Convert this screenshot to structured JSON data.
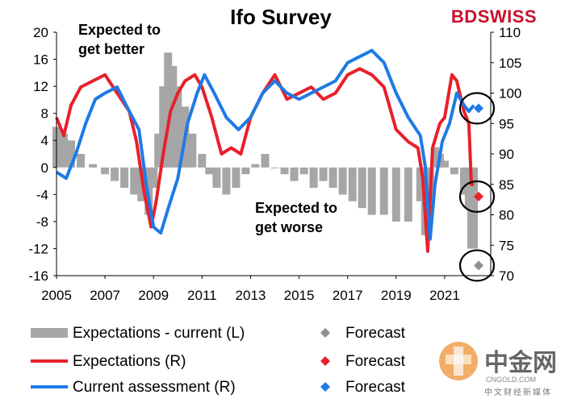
{
  "chart_data": {
    "type": "bar+line",
    "title": "Ifo Survey",
    "x_ticks": [
      "2005",
      "2007",
      "2009",
      "2011",
      "2013",
      "2015",
      "2017",
      "2019",
      "2021"
    ],
    "xlim": [
      2005,
      2022.9
    ],
    "ylim_left": [
      -16,
      20
    ],
    "ylim_right": [
      70,
      110
    ],
    "left_ticks": [
      "20",
      "16",
      "12",
      "8",
      "4",
      "0",
      "-4",
      "-8",
      "-12",
      "-16"
    ],
    "right_ticks": [
      "110",
      "105",
      "100",
      "95",
      "90",
      "85",
      "80",
      "75",
      "70"
    ],
    "annotations": [
      {
        "id": "better",
        "lines": [
          "Expected to",
          "get better"
        ]
      },
      {
        "id": "worse",
        "lines": [
          "Expected to",
          "get worse"
        ]
      }
    ],
    "series": [
      {
        "name": "Expectations - current (L)",
        "type": "bar",
        "axis": "left",
        "color": "#a6a6a6",
        "points": [
          [
            2005.0,
            6
          ],
          [
            2005.3,
            5
          ],
          [
            2005.6,
            4
          ],
          [
            2006.0,
            2
          ],
          [
            2006.5,
            0.5
          ],
          [
            2007.0,
            -1
          ],
          [
            2007.4,
            -2
          ],
          [
            2007.8,
            -3
          ],
          [
            2008.2,
            -4
          ],
          [
            2008.5,
            -5
          ],
          [
            2008.8,
            -7
          ],
          [
            2009.0,
            -3
          ],
          [
            2009.2,
            5
          ],
          [
            2009.4,
            12
          ],
          [
            2009.6,
            17
          ],
          [
            2009.8,
            15
          ],
          [
            2010.0,
            12
          ],
          [
            2010.3,
            9
          ],
          [
            2010.6,
            5
          ],
          [
            2011.0,
            2
          ],
          [
            2011.3,
            -1
          ],
          [
            2011.6,
            -3
          ],
          [
            2012.0,
            -4
          ],
          [
            2012.4,
            -3
          ],
          [
            2012.8,
            -1
          ],
          [
            2013.2,
            0.5
          ],
          [
            2013.6,
            2
          ],
          [
            2014.0,
            0
          ],
          [
            2014.4,
            -1
          ],
          [
            2014.8,
            -2
          ],
          [
            2015.2,
            -1
          ],
          [
            2015.6,
            -3
          ],
          [
            2016.0,
            -2
          ],
          [
            2016.4,
            -3
          ],
          [
            2016.8,
            -4
          ],
          [
            2017.2,
            -5
          ],
          [
            2017.6,
            -6
          ],
          [
            2018.0,
            -7
          ],
          [
            2018.5,
            -7
          ],
          [
            2019.0,
            -8
          ],
          [
            2019.5,
            -8
          ],
          [
            2020.0,
            -5
          ],
          [
            2020.2,
            -10
          ],
          [
            2020.4,
            -5
          ],
          [
            2020.6,
            3
          ],
          [
            2020.8,
            2
          ],
          [
            2021.0,
            1
          ],
          [
            2021.4,
            -1
          ],
          [
            2021.8,
            -4
          ],
          [
            2022.0,
            -6
          ],
          [
            2022.1,
            -12
          ],
          [
            2022.2,
            -12
          ]
        ]
      },
      {
        "name": "Expectations (R)",
        "type": "line",
        "axis": "right",
        "color": "#e8202a",
        "points": [
          [
            2005.0,
            96
          ],
          [
            2005.3,
            93
          ],
          [
            2005.6,
            98
          ],
          [
            2006.0,
            101
          ],
          [
            2006.5,
            102
          ],
          [
            2007.0,
            103
          ],
          [
            2007.5,
            100
          ],
          [
            2008.0,
            97
          ],
          [
            2008.3,
            92
          ],
          [
            2008.6,
            84
          ],
          [
            2008.9,
            78
          ],
          [
            2009.1,
            82
          ],
          [
            2009.4,
            90
          ],
          [
            2009.7,
            97
          ],
          [
            2010.0,
            100
          ],
          [
            2010.3,
            102
          ],
          [
            2010.7,
            103
          ],
          [
            2011.0,
            101
          ],
          [
            2011.4,
            96
          ],
          [
            2011.8,
            90
          ],
          [
            2012.2,
            91
          ],
          [
            2012.6,
            90
          ],
          [
            2013.0,
            96
          ],
          [
            2013.5,
            100
          ],
          [
            2014.0,
            103
          ],
          [
            2014.5,
            99
          ],
          [
            2015.0,
            100
          ],
          [
            2015.5,
            101
          ],
          [
            2016.0,
            99
          ],
          [
            2016.5,
            100
          ],
          [
            2017.0,
            103
          ],
          [
            2017.5,
            104
          ],
          [
            2018.0,
            103
          ],
          [
            2018.5,
            101
          ],
          [
            2019.0,
            94
          ],
          [
            2019.5,
            92
          ],
          [
            2019.9,
            91
          ],
          [
            2020.1,
            86
          ],
          [
            2020.3,
            74
          ],
          [
            2020.5,
            91
          ],
          [
            2020.8,
            95
          ],
          [
            2021.0,
            96
          ],
          [
            2021.3,
            103
          ],
          [
            2021.5,
            102
          ],
          [
            2021.8,
            97
          ],
          [
            2022.0,
            95
          ],
          [
            2022.1,
            85
          ],
          [
            2022.2,
            85
          ]
        ]
      },
      {
        "name": "Current assessment (R)",
        "type": "line",
        "axis": "right",
        "color": "#1e7ae6",
        "points": [
          [
            2005.0,
            87
          ],
          [
            2005.4,
            86
          ],
          [
            2005.8,
            90
          ],
          [
            2006.2,
            95
          ],
          [
            2006.6,
            99
          ],
          [
            2007.0,
            100
          ],
          [
            2007.5,
            101
          ],
          [
            2008.0,
            97
          ],
          [
            2008.4,
            94
          ],
          [
            2008.7,
            85
          ],
          [
            2009.0,
            78
          ],
          [
            2009.3,
            77
          ],
          [
            2009.6,
            81
          ],
          [
            2010.0,
            86
          ],
          [
            2010.4,
            95
          ],
          [
            2010.8,
            100
          ],
          [
            2011.1,
            103
          ],
          [
            2011.5,
            100
          ],
          [
            2012.0,
            96
          ],
          [
            2012.5,
            94
          ],
          [
            2013.0,
            96
          ],
          [
            2013.5,
            100
          ],
          [
            2014.0,
            102
          ],
          [
            2014.5,
            100
          ],
          [
            2015.0,
            99
          ],
          [
            2015.5,
            100
          ],
          [
            2016.0,
            101
          ],
          [
            2016.5,
            102
          ],
          [
            2017.0,
            105
          ],
          [
            2017.5,
            106
          ],
          [
            2018.0,
            107
          ],
          [
            2018.5,
            105
          ],
          [
            2019.0,
            100
          ],
          [
            2019.5,
            96
          ],
          [
            2020.0,
            93
          ],
          [
            2020.2,
            88
          ],
          [
            2020.4,
            76
          ],
          [
            2020.6,
            85
          ],
          [
            2020.9,
            92
          ],
          [
            2021.2,
            95
          ],
          [
            2021.5,
            100
          ],
          [
            2021.8,
            98
          ],
          [
            2022.0,
            97
          ],
          [
            2022.2,
            98
          ]
        ]
      }
    ],
    "forecasts": [
      {
        "name": "Forecast",
        "of": "Expectations - current (L)",
        "color": "#909090",
        "x": 2022.4,
        "y": -14.5,
        "axis": "left"
      },
      {
        "name": "Forecast",
        "of": "Expectations (R)",
        "color": "#e8202a",
        "x": 2022.4,
        "y": 83,
        "axis": "right"
      },
      {
        "name": "Forecast",
        "of": "Current assessment (R)",
        "color": "#1e7ae6",
        "x": 2022.4,
        "y": 97.5,
        "axis": "right"
      }
    ],
    "legend": {
      "placement": "bottom",
      "entries": [
        {
          "label": "Expectations - current (L)",
          "symbol": "bar",
          "color": "#a6a6a6"
        },
        {
          "label": "Forecast",
          "symbol": "diamond",
          "color": "#909090"
        },
        {
          "label": "Expectations (R)",
          "symbol": "line",
          "color": "#e8202a"
        },
        {
          "label": "Forecast",
          "symbol": "diamond",
          "color": "#e8202a"
        },
        {
          "label": "Current assessment (R)",
          "symbol": "line",
          "color": "#1e7ae6"
        },
        {
          "label": "Forecast",
          "symbol": "diamond",
          "color": "#1e7ae6"
        }
      ]
    }
  },
  "branding": {
    "bdswiss": {
      "bd": "BD",
      "swiss": "SWISS",
      "bd_color": "#c8102e",
      "swiss_color": "#c8102e"
    },
    "watermark": {
      "cn": "中金网",
      "domain": "CNGOLD.COM",
      "sub": "中文财经新媒体",
      "color": "#e07a1f"
    }
  }
}
